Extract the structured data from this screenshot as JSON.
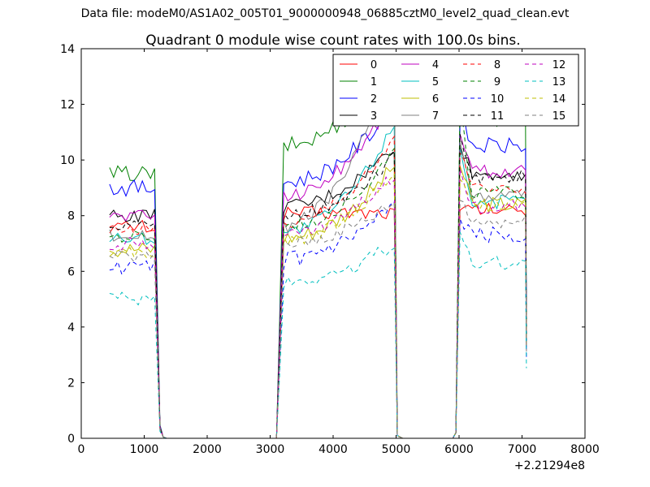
{
  "figure": {
    "suptitle": "Data file: modeM0/AS1A02_005T01_9000000948_06885cztM0_level2_quad_clean.evt"
  },
  "chart_data": {
    "type": "line",
    "title": "Quadrant 0 module wise count rates with 100.0s bins.",
    "xlabel": "",
    "ylabel": "",
    "x_offset_label": "+2.21294e8",
    "xlim": [
      0,
      8000
    ],
    "ylim": [
      0,
      14
    ],
    "xticks": [
      "0",
      "1000",
      "2000",
      "3000",
      "4000",
      "5000",
      "6000",
      "7000",
      "8000"
    ],
    "yticks": [
      "0",
      "2",
      "4",
      "6",
      "8",
      "10",
      "12",
      "14"
    ],
    "legend_position": "top-right",
    "grid": false,
    "segments": [
      {
        "x_start": 450,
        "step": 65,
        "count": 12
      },
      {
        "x_start": 3150,
        "step": 65,
        "count": 29
      },
      {
        "x_start": 5950,
        "step": 65,
        "count": 18
      }
    ],
    "series": [
      {
        "name": "0",
        "color": "#ff0000",
        "dash": "solid",
        "levels": [
          7.6,
          8.1,
          8.2
        ],
        "amp": 0.25
      },
      {
        "name": "1",
        "color": "#008000",
        "dash": "solid",
        "levels": [
          9.5,
          10.5,
          11.5
        ],
        "amp": 0.3,
        "peaks": [
          13.5,
          12.8
        ]
      },
      {
        "name": "2",
        "color": "#0000ff",
        "dash": "solid",
        "levels": [
          9.0,
          9.2,
          10.5
        ],
        "amp": 0.3,
        "peaks": [
          12.0,
          12.0
        ]
      },
      {
        "name": "3",
        "color": "#000000",
        "dash": "solid",
        "levels": [
          8.0,
          8.3,
          9.5
        ],
        "amp": 0.25,
        "peaks": [
          10.5,
          11.0
        ]
      },
      {
        "name": "4",
        "color": "#bf00bf",
        "dash": "solid",
        "levels": [
          8.0,
          8.7,
          9.6
        ],
        "amp": 0.25,
        "peaks": [
          12.3,
          11.5
        ]
      },
      {
        "name": "5",
        "color": "#00bfbf",
        "dash": "solid",
        "levels": [
          7.2,
          7.4,
          8.5
        ],
        "amp": 0.25,
        "peaks": [
          11.3,
          11.0
        ]
      },
      {
        "name": "6",
        "color": "#bfbf00",
        "dash": "solid",
        "levels": [
          6.8,
          7.2,
          8.4
        ],
        "amp": 0.3,
        "peaks": [
          9.8,
          10.3
        ]
      },
      {
        "name": "7",
        "color": "#808080",
        "dash": "solid",
        "levels": [
          7.3,
          7.6,
          8.7
        ],
        "amp": 0.25,
        "peaks": [
          13.5,
          11.2
        ]
      },
      {
        "name": "8",
        "color": "#ff0000",
        "dash": "dashed",
        "levels": [
          7.5,
          7.7,
          9.0
        ],
        "amp": 0.2,
        "peaks": [
          10.8,
          10.8
        ]
      },
      {
        "name": "9",
        "color": "#008000",
        "dash": "dashed",
        "levels": [
          7.2,
          7.6,
          8.8
        ],
        "amp": 0.25,
        "peaks": [
          10.3,
          12.8
        ]
      },
      {
        "name": "10",
        "color": "#0000ff",
        "dash": "dashed",
        "levels": [
          6.1,
          6.4,
          7.3
        ],
        "amp": 0.3,
        "peaks": [
          8.3,
          8.3
        ]
      },
      {
        "name": "11",
        "color": "#000000",
        "dash": "dashed",
        "levels": [
          7.7,
          8.0,
          9.4
        ],
        "amp": 0.25,
        "peaks": [
          10.1,
          11.5
        ]
      },
      {
        "name": "12",
        "color": "#bf00bf",
        "dash": "dashed",
        "levels": [
          7.0,
          7.3,
          8.3
        ],
        "amp": 0.25,
        "peaks": [
          9.5,
          10.2
        ]
      },
      {
        "name": "13",
        "color": "#00bfbf",
        "dash": "dashed",
        "levels": [
          5.0,
          5.6,
          6.3
        ],
        "amp": 0.25,
        "peaks": [
          7.0,
          7.8
        ]
      },
      {
        "name": "14",
        "color": "#bfbf00",
        "dash": "dashed",
        "levels": [
          6.6,
          7.1,
          8.4
        ],
        "amp": 0.25,
        "peaks": [
          9.6,
          9.8
        ]
      },
      {
        "name": "15",
        "color": "#808080",
        "dash": "dashed",
        "levels": [
          6.5,
          7.0,
          7.8
        ],
        "amp": 0.25,
        "peaks": [
          8.5,
          9.0
        ]
      }
    ]
  }
}
